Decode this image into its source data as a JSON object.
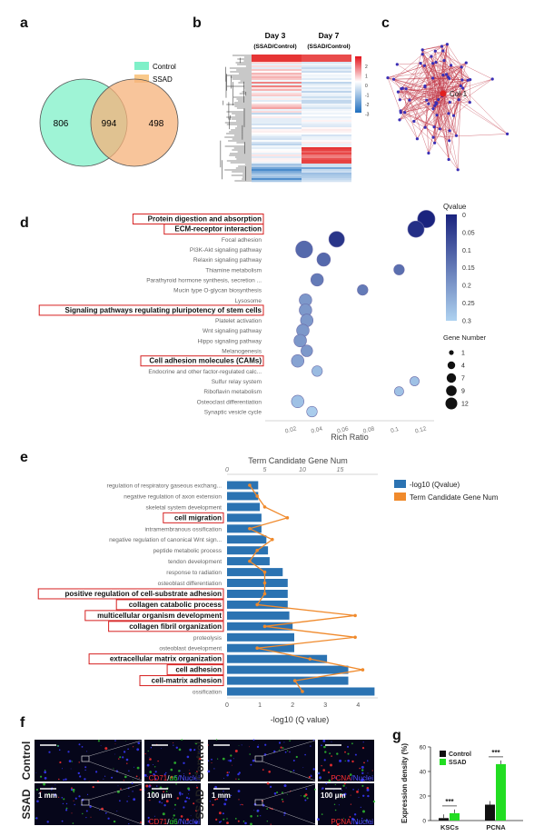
{
  "panels": {
    "a": "a",
    "b": "b",
    "c": "c",
    "d": "d",
    "e": "e",
    "f": "f",
    "g": "g"
  },
  "venn": {
    "legend": [
      {
        "label": "Control",
        "color": "#7ff0c8"
      },
      {
        "label": "SSAD",
        "color": "#f9c98a"
      }
    ],
    "left_only": "806",
    "overlap": "994",
    "right_only": "498"
  },
  "heatmap": {
    "col1_title": "Day 3",
    "col1_sub": "(SSAD/Control)",
    "col2_title": "Day 7",
    "col2_sub": "(SSAD/Control)",
    "scale_ticks": [
      "2",
      "1",
      "0",
      "-1",
      "-2",
      "-3"
    ]
  },
  "network": {
    "hub_label": "Col-1"
  },
  "chart_data": [
    {
      "type": "scatter",
      "xlabel": "Rich Ratio",
      "xticks": [
        "0.02",
        "0.04",
        "0.06",
        "0.08",
        "0.1",
        "0.12"
      ],
      "xlim": [
        0.0,
        0.13
      ],
      "legend_color_title": "Qvalue",
      "color_ticks": [
        "0",
        "0.05",
        "0.1",
        "0.15",
        "0.2",
        "0.25",
        "0.3"
      ],
      "legend_size_title": "Gene Number",
      "size_ticks": [
        "1",
        "4",
        "7",
        "9",
        "12"
      ],
      "terms": [
        {
          "label": "Protein digestion and absorption",
          "x": 0.124,
          "q": 0.0,
          "n": 12,
          "boxed": true
        },
        {
          "label": "ECM-receptor interaction",
          "x": 0.116,
          "q": 0.02,
          "n": 10,
          "boxed": true
        },
        {
          "label": "Focal adhesion",
          "x": 0.055,
          "q": 0.03,
          "n": 9,
          "boxed": false
        },
        {
          "label": "PI3K-Akt signaling pathway",
          "x": 0.03,
          "q": 0.12,
          "n": 11,
          "boxed": false
        },
        {
          "label": "Relaxin signaling pathway",
          "x": 0.045,
          "q": 0.12,
          "n": 6,
          "boxed": false
        },
        {
          "label": "Thiamine metabolism",
          "x": 0.103,
          "q": 0.13,
          "n": 3,
          "boxed": false
        },
        {
          "label": "Parathyroid hormone synthesis, secretion ...",
          "x": 0.04,
          "q": 0.15,
          "n": 5,
          "boxed": false
        },
        {
          "label": "Mucin type O-glycan biosynthesis",
          "x": 0.075,
          "q": 0.15,
          "n": 3,
          "boxed": false
        },
        {
          "label": "Lysosome",
          "x": 0.031,
          "q": 0.2,
          "n": 5,
          "boxed": false
        },
        {
          "label": "Signaling pathways regulating pluripotency of stem cells",
          "x": 0.031,
          "q": 0.2,
          "n": 5,
          "boxed": true
        },
        {
          "label": "Platelet activation",
          "x": 0.032,
          "q": 0.2,
          "n": 5,
          "boxed": false
        },
        {
          "label": "Wnt signaling pathway",
          "x": 0.029,
          "q": 0.2,
          "n": 5,
          "boxed": false
        },
        {
          "label": "Hippo signaling pathway",
          "x": 0.027,
          "q": 0.2,
          "n": 5,
          "boxed": false
        },
        {
          "label": "Melanogenesis",
          "x": 0.032,
          "q": 0.2,
          "n": 4,
          "boxed": false
        },
        {
          "label": "Cell adhesion molecules (CAMs)",
          "x": 0.025,
          "q": 0.22,
          "n": 5,
          "boxed": true
        },
        {
          "label": "Endocrine and other factor-regulated calc...",
          "x": 0.04,
          "q": 0.26,
          "n": 3,
          "boxed": false
        },
        {
          "label": "Sulfur relay system",
          "x": 0.115,
          "q": 0.27,
          "n": 2,
          "boxed": false
        },
        {
          "label": "Riboflavin metabolism",
          "x": 0.103,
          "q": 0.27,
          "n": 2,
          "boxed": false
        },
        {
          "label": "Osteoclast differentiation",
          "x": 0.025,
          "q": 0.27,
          "n": 5,
          "boxed": false
        },
        {
          "label": "Synaptic vesicle cycle",
          "x": 0.036,
          "q": 0.29,
          "n": 3,
          "boxed": false
        }
      ]
    },
    {
      "type": "bar",
      "title": "Term Candidate Gene Num",
      "xlabel": "-log10  (Q value)",
      "xticks": [
        "0",
        "1",
        "2",
        "3",
        "4"
      ],
      "xlim": [
        0,
        4.6
      ],
      "top_ticks": [
        "0",
        "5",
        "10",
        "15"
      ],
      "top_lim": [
        0,
        20
      ],
      "series": [
        {
          "name": "-log10 (Qvalue)",
          "color": "#2b73b2"
        },
        {
          "name": "Term Candidate Gene Num",
          "color": "#f08a2c"
        }
      ],
      "terms": [
        {
          "label": "regulation of respiratory gaseous exchang...",
          "value": 0.95,
          "genes": 3,
          "boxed": false
        },
        {
          "label": "negative regulation of axon extension",
          "value": 0.95,
          "genes": 4,
          "boxed": false
        },
        {
          "label": "skeletal system development",
          "value": 1.0,
          "genes": 5,
          "boxed": false
        },
        {
          "label": "cell migration",
          "value": 1.05,
          "genes": 8,
          "boxed": true
        },
        {
          "label": "intramembranous ossification",
          "value": 1.05,
          "genes": 3,
          "boxed": false
        },
        {
          "label": "negative regulation of canonical Wnt sign...",
          "value": 1.2,
          "genes": 6,
          "boxed": false
        },
        {
          "label": "peptide metabolic process",
          "value": 1.25,
          "genes": 4,
          "boxed": false
        },
        {
          "label": "tendon development",
          "value": 1.3,
          "genes": 3,
          "boxed": false
        },
        {
          "label": "response to radiation",
          "value": 1.7,
          "genes": 5,
          "boxed": false
        },
        {
          "label": "osteoblast differentiation",
          "value": 1.85,
          "genes": 5,
          "boxed": false
        },
        {
          "label": "positive regulation of cell-substrate adhesion",
          "value": 1.85,
          "genes": 5,
          "boxed": true
        },
        {
          "label": "collagen catabolic process",
          "value": 1.85,
          "genes": 4,
          "boxed": true
        },
        {
          "label": "multicellular organism development",
          "value": 1.9,
          "genes": 17,
          "boxed": true
        },
        {
          "label": "collagen fibril organization",
          "value": 2.0,
          "genes": 5,
          "boxed": true
        },
        {
          "label": "proteolysis",
          "value": 2.05,
          "genes": 17,
          "boxed": false
        },
        {
          "label": "osteoblast development",
          "value": 2.05,
          "genes": 4,
          "boxed": false
        },
        {
          "label": "extracellular matrix organization",
          "value": 3.05,
          "genes": 11,
          "boxed": true
        },
        {
          "label": "cell adhesion",
          "value": 3.7,
          "genes": 18,
          "boxed": true
        },
        {
          "label": "cell-matrix adhesion",
          "value": 3.7,
          "genes": 9,
          "boxed": true
        },
        {
          "label": "ossification",
          "value": 4.5,
          "genes": 10,
          "boxed": false
        }
      ]
    },
    {
      "type": "bar",
      "ylabel": "Expression density (%)",
      "ylim": [
        0,
        60
      ],
      "yticks": [
        "0",
        "20",
        "40",
        "60"
      ],
      "categories": [
        "KSCs",
        "PCNA"
      ],
      "series": [
        {
          "name": "Control",
          "color": "#111111",
          "values": [
            2,
            13
          ]
        },
        {
          "name": "SSAD",
          "color": "#22dd22",
          "values": [
            6,
            46
          ]
        }
      ],
      "significance": [
        "***",
        "***"
      ]
    }
  ],
  "imaging": {
    "row1_label": "Control",
    "row2_label": "SSAD",
    "scale_low": "1 mm",
    "scale_high": "100 μm",
    "left_stain": [
      {
        "t": "CD71",
        "c": "#ff3030"
      },
      {
        "t": "/",
        "c": "#ffffff"
      },
      {
        "t": "α6",
        "c": "#30e030"
      },
      {
        "t": "/Nuclei",
        "c": "#5050ff"
      }
    ],
    "right_stain": [
      {
        "t": "PCNA",
        "c": "#ff3030"
      },
      {
        "t": "/Nuclei",
        "c": "#5050ff"
      }
    ]
  }
}
